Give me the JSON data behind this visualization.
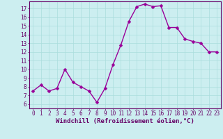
{
  "x": [
    0,
    1,
    2,
    3,
    4,
    5,
    6,
    7,
    8,
    9,
    10,
    11,
    12,
    13,
    14,
    15,
    16,
    17,
    18,
    19,
    20,
    21,
    22,
    23
  ],
  "y": [
    7.5,
    8.2,
    7.5,
    7.8,
    10.0,
    8.5,
    8.0,
    7.5,
    6.2,
    7.8,
    10.5,
    12.8,
    15.5,
    17.2,
    17.5,
    17.2,
    17.3,
    14.8,
    14.8,
    13.5,
    13.2,
    13.0,
    12.0,
    12.0
  ],
  "line_color": "#990099",
  "marker": "D",
  "marker_size": 2.5,
  "bg_color": "#cceef0",
  "grid_color": "#aadddd",
  "xlabel": "Windchill (Refroidissement éolien,°C)",
  "ylabel": "",
  "xlim": [
    -0.5,
    23.5
  ],
  "ylim": [
    5.5,
    17.8
  ],
  "yticks": [
    6,
    7,
    8,
    9,
    10,
    11,
    12,
    13,
    14,
    15,
    16,
    17
  ],
  "xticks": [
    0,
    1,
    2,
    3,
    4,
    5,
    6,
    7,
    8,
    9,
    10,
    11,
    12,
    13,
    14,
    15,
    16,
    17,
    18,
    19,
    20,
    21,
    22,
    23
  ],
  "tick_label_fontsize": 5.5,
  "xlabel_fontsize": 6.5,
  "line_width": 1.0,
  "spine_color": "#660066",
  "text_color": "#660066"
}
